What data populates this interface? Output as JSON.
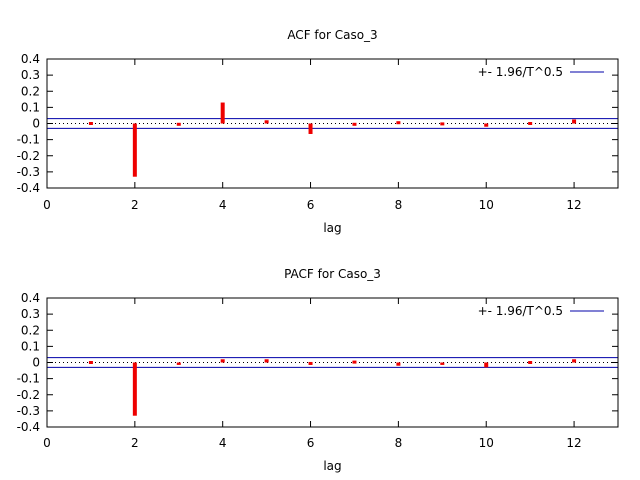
{
  "chart_data": [
    {
      "type": "bar",
      "title": "ACF for Caso_3",
      "xlabel": "lag",
      "ylabel": "",
      "xlim": [
        0,
        13
      ],
      "ylim": [
        -0.4,
        0.4
      ],
      "xticks": [
        0,
        2,
        4,
        6,
        8,
        10,
        12
      ],
      "yticks": [
        -0.4,
        -0.3,
        -0.2,
        -0.1,
        0,
        0.1,
        0.2,
        0.3,
        0.4
      ],
      "lags": [
        1,
        2,
        3,
        4,
        5,
        6,
        7,
        8,
        9,
        10,
        11,
        12
      ],
      "values": [
        0.0,
        -0.33,
        -0.01,
        0.13,
        0.02,
        -0.065,
        -0.01,
        0.01,
        -0.005,
        -0.02,
        0.0,
        0.025
      ],
      "bar_color": "#ee0000",
      "confidence_band": 0.03,
      "legend": "+- 1.96/T^0.5",
      "legend_color": "#0000aa",
      "legend_position": "top-right"
    },
    {
      "type": "bar",
      "title": "PACF for Caso_3",
      "xlabel": "lag",
      "ylabel": "",
      "xlim": [
        0,
        13
      ],
      "ylim": [
        -0.4,
        0.4
      ],
      "xticks": [
        0,
        2,
        4,
        6,
        8,
        10,
        12
      ],
      "yticks": [
        -0.4,
        -0.3,
        -0.2,
        -0.1,
        0,
        0.1,
        0.2,
        0.3,
        0.4
      ],
      "lags": [
        1,
        2,
        3,
        4,
        5,
        6,
        7,
        8,
        9,
        10,
        11,
        12
      ],
      "values": [
        0.0,
        -0.33,
        -0.015,
        0.02,
        0.02,
        -0.012,
        0.005,
        -0.02,
        -0.015,
        -0.03,
        0.0,
        0.02
      ],
      "bar_color": "#ee0000",
      "confidence_band": 0.03,
      "legend": "+- 1.96/T^0.5",
      "legend_color": "#0000aa",
      "legend_position": "top-right"
    }
  ]
}
